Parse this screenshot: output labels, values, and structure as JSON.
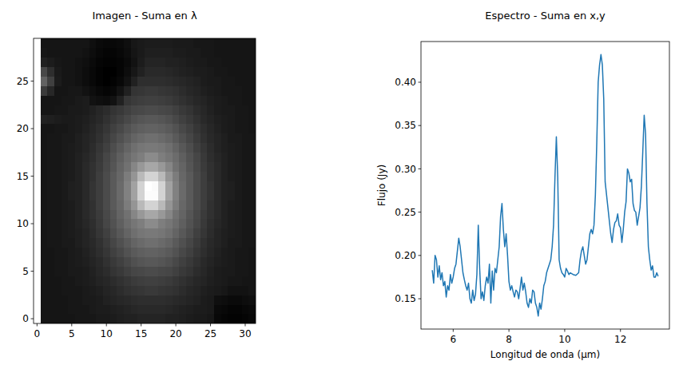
{
  "chart_data": [
    {
      "type": "heatmap",
      "title": "Imagen - Suma en λ",
      "color": "gray",
      "xlim": [
        -0.5,
        31.5
      ],
      "ylim": [
        -0.5,
        29.5
      ],
      "xticks": [
        0,
        5,
        10,
        15,
        20,
        25,
        30
      ],
      "yticks": [
        0,
        5,
        10,
        15,
        20,
        25
      ],
      "cells": [
        [
          null,
          15,
          15,
          15,
          15,
          15,
          16,
          16,
          16,
          17,
          17,
          18,
          19,
          20,
          20,
          21,
          21,
          21,
          21,
          20,
          20,
          19,
          18,
          17,
          17,
          16,
          10,
          9,
          8,
          8,
          9,
          10
        ],
        [
          null,
          15,
          15,
          15,
          15,
          16,
          16,
          16,
          17,
          18,
          18,
          19,
          20,
          21,
          22,
          23,
          23,
          23,
          23,
          22,
          21,
          20,
          19,
          18,
          18,
          17,
          11,
          10,
          9,
          9,
          10,
          11
        ],
        [
          null,
          15,
          15,
          15,
          15,
          16,
          16,
          17,
          17,
          18,
          20,
          21,
          22,
          23,
          24,
          25,
          25,
          25,
          25,
          24,
          23,
          22,
          21,
          20,
          18,
          17,
          13,
          12,
          11,
          11,
          12,
          13
        ],
        [
          null,
          15,
          15,
          15,
          16,
          16,
          16,
          17,
          18,
          19,
          21,
          22,
          24,
          26,
          27,
          28,
          29,
          29,
          28,
          27,
          26,
          24,
          22,
          21,
          19,
          18,
          17,
          16,
          14,
          14,
          14,
          15
        ],
        [
          null,
          15,
          15,
          15,
          16,
          16,
          17,
          18,
          19,
          21,
          22,
          24,
          26,
          28,
          30,
          31,
          32,
          32,
          31,
          30,
          28,
          26,
          24,
          22,
          21,
          19,
          18,
          17,
          16,
          16,
          15,
          15
        ],
        [
          null,
          15,
          15,
          16,
          16,
          17,
          17,
          18,
          20,
          22,
          24,
          27,
          29,
          32,
          34,
          35,
          36,
          36,
          35,
          34,
          32,
          29,
          27,
          24,
          22,
          20,
          18,
          17,
          17,
          16,
          16,
          15
        ],
        [
          null,
          15,
          15,
          16,
          16,
          17,
          18,
          19,
          21,
          23,
          26,
          29,
          32,
          35,
          38,
          40,
          41,
          41,
          40,
          38,
          35,
          32,
          29,
          26,
          23,
          21,
          19,
          18,
          17,
          16,
          16,
          15
        ],
        [
          null,
          15,
          15,
          16,
          16,
          17,
          18,
          20,
          22,
          25,
          28,
          32,
          35,
          39,
          42,
          44,
          45,
          45,
          44,
          42,
          39,
          35,
          32,
          28,
          25,
          22,
          20,
          18,
          17,
          16,
          16,
          15
        ],
        [
          null,
          15,
          16,
          16,
          17,
          17,
          19,
          21,
          23,
          26,
          30,
          34,
          38,
          42,
          46,
          48,
          50,
          50,
          48,
          46,
          42,
          38,
          34,
          30,
          26,
          23,
          21,
          19,
          17,
          17,
          16,
          16
        ],
        [
          null,
          15,
          16,
          16,
          17,
          18,
          19,
          21,
          24,
          28,
          32,
          37,
          41,
          46,
          50,
          53,
          54,
          54,
          53,
          50,
          46,
          41,
          37,
          32,
          28,
          24,
          21,
          19,
          18,
          17,
          16,
          16
        ],
        [
          null,
          15,
          16,
          16,
          17,
          18,
          20,
          22,
          25,
          29,
          34,
          39,
          44,
          49,
          53,
          56,
          61,
          61,
          56,
          53,
          49,
          44,
          39,
          34,
          29,
          25,
          22,
          20,
          18,
          17,
          16,
          16
        ],
        [
          null,
          15,
          16,
          16,
          17,
          18,
          20,
          23,
          26,
          30,
          35,
          40,
          46,
          51,
          59,
          66,
          72,
          72,
          66,
          59,
          51,
          46,
          40,
          35,
          30,
          26,
          23,
          20,
          18,
          17,
          16,
          16
        ],
        [
          null,
          15,
          16,
          16,
          17,
          18,
          20,
          23,
          26,
          31,
          36,
          42,
          47,
          55,
          65,
          79,
          89,
          89,
          79,
          65,
          55,
          47,
          42,
          36,
          31,
          26,
          23,
          20,
          18,
          17,
          16,
          16
        ],
        [
          null,
          15,
          16,
          16,
          17,
          19,
          20,
          23,
          27,
          31,
          36,
          42,
          48,
          57,
          70,
          89,
          105,
          105,
          89,
          70,
          57,
          48,
          42,
          36,
          31,
          27,
          23,
          20,
          19,
          17,
          16,
          16
        ],
        [
          null,
          15,
          16,
          16,
          17,
          19,
          20,
          23,
          27,
          31,
          36,
          42,
          48,
          57,
          70,
          89,
          106,
          104,
          89,
          70,
          57,
          48,
          42,
          36,
          31,
          27,
          23,
          20,
          19,
          17,
          16,
          16
        ],
        [
          null,
          15,
          16,
          16,
          17,
          18,
          20,
          23,
          26,
          31,
          36,
          42,
          47,
          55,
          65,
          79,
          89,
          89,
          79,
          65,
          55,
          47,
          42,
          36,
          31,
          26,
          23,
          20,
          18,
          17,
          16,
          16
        ],
        [
          null,
          15,
          16,
          16,
          17,
          18,
          20,
          23,
          26,
          30,
          35,
          40,
          46,
          51,
          59,
          66,
          72,
          72,
          66,
          59,
          51,
          46,
          40,
          35,
          30,
          26,
          23,
          20,
          18,
          17,
          16,
          16
        ],
        [
          null,
          15,
          16,
          16,
          17,
          18,
          20,
          22,
          25,
          29,
          34,
          39,
          44,
          49,
          53,
          56,
          61,
          61,
          56,
          53,
          49,
          44,
          39,
          34,
          29,
          25,
          22,
          20,
          18,
          17,
          16,
          16
        ],
        [
          null,
          15,
          16,
          16,
          17,
          18,
          19,
          21,
          24,
          28,
          32,
          37,
          41,
          46,
          50,
          53,
          54,
          54,
          53,
          50,
          46,
          41,
          37,
          32,
          28,
          24,
          21,
          19,
          18,
          17,
          16,
          16
        ],
        [
          null,
          15,
          16,
          16,
          17,
          17,
          19,
          21,
          23,
          26,
          30,
          34,
          38,
          42,
          46,
          48,
          50,
          50,
          48,
          46,
          42,
          38,
          34,
          30,
          26,
          23,
          21,
          19,
          17,
          17,
          16,
          16
        ],
        [
          null,
          15,
          15,
          16,
          16,
          17,
          18,
          20,
          22,
          25,
          28,
          32,
          35,
          39,
          42,
          44,
          45,
          45,
          44,
          42,
          39,
          35,
          32,
          28,
          25,
          22,
          20,
          18,
          17,
          16,
          16,
          15
        ],
        [
          null,
          20,
          19,
          18,
          17,
          17,
          18,
          19,
          21,
          23,
          26,
          29,
          32,
          35,
          38,
          40,
          41,
          41,
          40,
          38,
          35,
          32,
          29,
          26,
          23,
          21,
          19,
          18,
          17,
          16,
          16,
          15
        ],
        [
          null,
          15,
          15,
          16,
          16,
          17,
          17,
          18,
          20,
          22,
          24,
          27,
          29,
          32,
          34,
          35,
          36,
          36,
          35,
          34,
          32,
          29,
          27,
          24,
          22,
          20,
          18,
          17,
          17,
          16,
          16,
          15
        ],
        [
          null,
          15,
          15,
          15,
          16,
          16,
          17,
          18,
          14,
          13,
          12,
          14,
          20,
          28,
          30,
          31,
          32,
          32,
          31,
          30,
          28,
          26,
          24,
          22,
          21,
          19,
          18,
          17,
          16,
          16,
          15,
          15
        ],
        [
          null,
          30,
          22,
          15,
          15,
          16,
          16,
          14,
          12,
          10,
          9,
          10,
          14,
          20,
          27,
          28,
          29,
          29,
          28,
          27,
          26,
          24,
          22,
          21,
          19,
          18,
          17,
          16,
          16,
          16,
          15,
          15
        ],
        [
          null,
          45,
          32,
          18,
          15,
          15,
          14,
          12,
          10,
          8,
          7,
          8,
          10,
          14,
          20,
          25,
          25,
          25,
          25,
          24,
          23,
          22,
          21,
          20,
          18,
          17,
          17,
          16,
          16,
          15,
          15,
          15
        ],
        [
          null,
          35,
          25,
          17,
          15,
          15,
          14,
          12,
          10,
          8,
          7,
          7,
          9,
          12,
          16,
          20,
          23,
          23,
          23,
          22,
          21,
          20,
          19,
          18,
          18,
          17,
          16,
          16,
          15,
          15,
          15,
          15
        ],
        [
          null,
          20,
          18,
          16,
          15,
          15,
          14,
          13,
          11,
          9,
          8,
          8,
          9,
          11,
          14,
          18,
          21,
          21,
          21,
          20,
          20,
          19,
          18,
          17,
          17,
          16,
          16,
          15,
          15,
          15,
          15,
          15
        ],
        [
          null,
          16,
          15,
          15,
          15,
          15,
          15,
          14,
          12,
          10,
          9,
          9,
          10,
          12,
          15,
          17,
          19,
          19,
          19,
          19,
          18,
          18,
          17,
          17,
          16,
          16,
          15,
          15,
          15,
          15,
          15,
          15
        ],
        [
          null,
          15,
          15,
          15,
          15,
          15,
          15,
          15,
          13,
          11,
          10,
          10,
          11,
          13,
          16,
          17,
          18,
          18,
          18,
          18,
          17,
          17,
          17,
          16,
          16,
          16,
          15,
          15,
          15,
          15,
          15,
          15
        ]
      ]
    },
    {
      "type": "line",
      "title": "Espectro - Suma en x,y",
      "x_label": "Longitud de onda (µm)",
      "y_label": "Flujo (Jy)",
      "color": "#1f77b4",
      "xlim": [
        4.845,
        13.755
      ],
      "ylim": [
        0.115,
        0.447
      ],
      "xticks": [
        6,
        8,
        10,
        12
      ],
      "yticks": [
        0.15,
        {
          "value": 0.2,
          "label": "0.20"
        },
        0.25,
        {
          "value": 0.3,
          "label": "0.30"
        },
        0.35,
        {
          "value": 0.4,
          "label": "0.40"
        }
      ],
      "x": [
        5.25,
        5.3,
        5.35,
        5.4,
        5.45,
        5.5,
        5.55,
        5.6,
        5.65,
        5.7,
        5.75,
        5.8,
        5.85,
        5.9,
        5.95,
        6.0,
        6.05,
        6.1,
        6.15,
        6.2,
        6.25,
        6.3,
        6.35,
        6.4,
        6.45,
        6.5,
        6.55,
        6.6,
        6.65,
        6.7,
        6.75,
        6.8,
        6.85,
        6.9,
        6.95,
        7.0,
        7.05,
        7.1,
        7.15,
        7.2,
        7.25,
        7.3,
        7.35,
        7.4,
        7.45,
        7.5,
        7.55,
        7.6,
        7.65,
        7.7,
        7.75,
        7.8,
        7.85,
        7.9,
        7.95,
        8.0,
        8.05,
        8.1,
        8.15,
        8.2,
        8.25,
        8.3,
        8.35,
        8.4,
        8.45,
        8.5,
        8.55,
        8.6,
        8.65,
        8.7,
        8.75,
        8.8,
        8.85,
        8.9,
        8.95,
        9.0,
        9.05,
        9.1,
        9.15,
        9.2,
        9.25,
        9.3,
        9.35,
        9.4,
        9.45,
        9.5,
        9.55,
        9.6,
        9.65,
        9.7,
        9.75,
        9.8,
        9.85,
        9.9,
        9.95,
        10.0,
        10.05,
        10.1,
        10.15,
        10.2,
        10.3,
        10.4,
        10.5,
        10.55,
        10.6,
        10.65,
        10.7,
        10.75,
        10.8,
        10.85,
        10.9,
        10.95,
        11.0,
        11.05,
        11.1,
        11.15,
        11.2,
        11.25,
        11.3,
        11.35,
        11.4,
        11.45,
        11.5,
        11.55,
        11.6,
        11.65,
        11.7,
        11.75,
        11.8,
        11.85,
        11.9,
        11.95,
        12.0,
        12.05,
        12.1,
        12.15,
        12.2,
        12.25,
        12.3,
        12.35,
        12.4,
        12.45,
        12.5,
        12.55,
        12.6,
        12.65,
        12.7,
        12.75,
        12.8,
        12.85,
        12.9,
        12.95,
        13.0,
        13.05,
        13.1,
        13.15,
        13.2,
        13.25,
        13.3,
        13.35
      ],
      "values": [
        0.183,
        0.168,
        0.2,
        0.195,
        0.175,
        0.188,
        0.172,
        0.18,
        0.165,
        0.17,
        0.152,
        0.165,
        0.16,
        0.178,
        0.168,
        0.175,
        0.185,
        0.19,
        0.205,
        0.22,
        0.21,
        0.195,
        0.18,
        0.172,
        0.165,
        0.16,
        0.168,
        0.15,
        0.145,
        0.16,
        0.148,
        0.155,
        0.178,
        0.235,
        0.185,
        0.15,
        0.158,
        0.148,
        0.165,
        0.175,
        0.168,
        0.19,
        0.145,
        0.182,
        0.16,
        0.185,
        0.18,
        0.195,
        0.21,
        0.245,
        0.26,
        0.23,
        0.21,
        0.225,
        0.2,
        0.17,
        0.16,
        0.165,
        0.158,
        0.152,
        0.16,
        0.158,
        0.15,
        0.162,
        0.175,
        0.16,
        0.168,
        0.158,
        0.145,
        0.14,
        0.15,
        0.145,
        0.16,
        0.158,
        0.145,
        0.14,
        0.13,
        0.145,
        0.138,
        0.15,
        0.165,
        0.17,
        0.18,
        0.185,
        0.19,
        0.195,
        0.21,
        0.235,
        0.29,
        0.337,
        0.29,
        0.195,
        0.185,
        0.18,
        0.178,
        0.175,
        0.185,
        0.182,
        0.178,
        0.18,
        0.178,
        0.177,
        0.18,
        0.195,
        0.205,
        0.21,
        0.2,
        0.19,
        0.195,
        0.21,
        0.225,
        0.23,
        0.225,
        0.235,
        0.27,
        0.33,
        0.4,
        0.42,
        0.432,
        0.42,
        0.38,
        0.285,
        0.27,
        0.255,
        0.24,
        0.225,
        0.215,
        0.23,
        0.238,
        0.24,
        0.248,
        0.235,
        0.232,
        0.215,
        0.23,
        0.25,
        0.262,
        0.3,
        0.295,
        0.285,
        0.288,
        0.26,
        0.252,
        0.25,
        0.235,
        0.245,
        0.255,
        0.28,
        0.32,
        0.362,
        0.34,
        0.26,
        0.21,
        0.195,
        0.183,
        0.188,
        0.175,
        0.175,
        0.18,
        0.176
      ]
    }
  ]
}
